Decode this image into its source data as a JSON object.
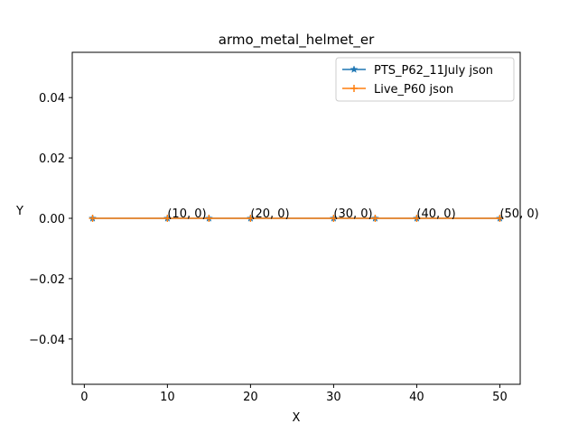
{
  "chart_data": {
    "type": "line",
    "title": "armo_metal_helmet_er",
    "xlabel": "X",
    "ylabel": "Y",
    "xlim": [
      -1.45,
      52.45
    ],
    "ylim": [
      -0.055,
      0.055
    ],
    "x_ticks": [
      0,
      10,
      20,
      30,
      40,
      50
    ],
    "y_ticks": [
      -0.04,
      -0.02,
      0.0,
      0.02,
      0.04
    ],
    "y_tick_labels": [
      "−0.04",
      "−0.02",
      "0.00",
      "0.02",
      "0.04"
    ],
    "grid": false,
    "legend_position": "top-right",
    "series": [
      {
        "name": "PTS_P62_11July json",
        "color": "#1f77b4",
        "marker": "star",
        "x": [
          1,
          10,
          15,
          20,
          30,
          35,
          40,
          50
        ],
        "y": [
          0,
          0,
          0,
          0,
          0,
          0,
          0,
          0
        ]
      },
      {
        "name": "Live_P60 json",
        "color": "#ff7f0e",
        "marker": "plus",
        "x": [
          1,
          10,
          15,
          20,
          30,
          35,
          40,
          50
        ],
        "y": [
          0,
          0,
          0,
          0,
          0,
          0,
          0,
          0
        ]
      }
    ],
    "annotations": [
      {
        "text": "(10, 0)",
        "x": 10,
        "y": 0
      },
      {
        "text": "(20, 0)",
        "x": 20,
        "y": 0
      },
      {
        "text": "(30, 0)",
        "x": 30,
        "y": 0
      },
      {
        "text": "(40, 0)",
        "x": 40,
        "y": 0
      },
      {
        "text": "(50, 0)",
        "x": 50,
        "y": 0
      }
    ]
  }
}
